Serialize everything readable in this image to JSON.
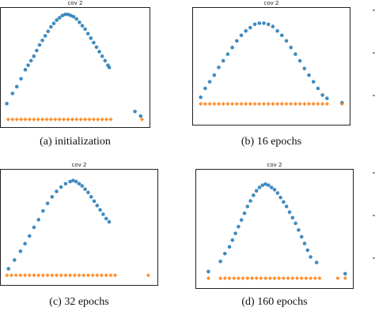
{
  "chart_data": [
    {
      "type": "scatter",
      "title": "cov 2",
      "caption": "(a) initialization",
      "xlim": [
        0,
        1
      ],
      "ylim": [
        0,
        1
      ],
      "series": [
        {
          "color": "#1f77b4",
          "marker": "circle",
          "points": [
            [
              0.02,
              0.18
            ],
            [
              0.06,
              0.27
            ],
            [
              0.09,
              0.33
            ],
            [
              0.12,
              0.4
            ],
            [
              0.15,
              0.48
            ],
            [
              0.17,
              0.52
            ],
            [
              0.19,
              0.56
            ],
            [
              0.21,
              0.6
            ],
            [
              0.23,
              0.65
            ],
            [
              0.25,
              0.7
            ],
            [
              0.27,
              0.74
            ],
            [
              0.29,
              0.78
            ],
            [
              0.31,
              0.82
            ],
            [
              0.33,
              0.86
            ],
            [
              0.35,
              0.89
            ],
            [
              0.37,
              0.92
            ],
            [
              0.39,
              0.94
            ],
            [
              0.41,
              0.96
            ],
            [
              0.43,
              0.97
            ],
            [
              0.45,
              0.97
            ],
            [
              0.47,
              0.96
            ],
            [
              0.49,
              0.95
            ],
            [
              0.51,
              0.93
            ],
            [
              0.53,
              0.9
            ],
            [
              0.55,
              0.87
            ],
            [
              0.57,
              0.84
            ],
            [
              0.59,
              0.8
            ],
            [
              0.61,
              0.76
            ],
            [
              0.63,
              0.72
            ],
            [
              0.65,
              0.68
            ],
            [
              0.67,
              0.64
            ],
            [
              0.69,
              0.6
            ],
            [
              0.71,
              0.56
            ],
            [
              0.73,
              0.52
            ],
            [
              0.74,
              0.5
            ],
            [
              0.92,
              0.11
            ],
            [
              0.96,
              0.07
            ]
          ]
        },
        {
          "color": "#ff7f0e",
          "marker": "diamond",
          "points": [
            [
              0.03,
              0.04
            ],
            [
              0.06,
              0.04
            ],
            [
              0.09,
              0.04
            ],
            [
              0.12,
              0.04
            ],
            [
              0.15,
              0.04
            ],
            [
              0.18,
              0.04
            ],
            [
              0.21,
              0.04
            ],
            [
              0.24,
              0.04
            ],
            [
              0.27,
              0.04
            ],
            [
              0.3,
              0.04
            ],
            [
              0.33,
              0.04
            ],
            [
              0.36,
              0.04
            ],
            [
              0.39,
              0.04
            ],
            [
              0.42,
              0.04
            ],
            [
              0.45,
              0.04
            ],
            [
              0.48,
              0.04
            ],
            [
              0.51,
              0.04
            ],
            [
              0.54,
              0.04
            ],
            [
              0.57,
              0.04
            ],
            [
              0.6,
              0.04
            ],
            [
              0.63,
              0.04
            ],
            [
              0.66,
              0.04
            ],
            [
              0.69,
              0.04
            ],
            [
              0.72,
              0.04
            ],
            [
              0.75,
              0.04
            ],
            [
              0.97,
              0.04
            ]
          ]
        }
      ]
    },
    {
      "type": "scatter",
      "title": "cov 2",
      "caption": "(b) 16 epochs",
      "xlim": [
        0,
        1
      ],
      "ylim": [
        0,
        1
      ],
      "series": [
        {
          "color": "#1f77b4",
          "marker": "circle",
          "points": [
            [
              0.03,
              0.22
            ],
            [
              0.06,
              0.3
            ],
            [
              0.09,
              0.36
            ],
            [
              0.12,
              0.42
            ],
            [
              0.15,
              0.49
            ],
            [
              0.18,
              0.55
            ],
            [
              0.21,
              0.61
            ],
            [
              0.24,
              0.67
            ],
            [
              0.27,
              0.73
            ],
            [
              0.3,
              0.78
            ],
            [
              0.33,
              0.82
            ],
            [
              0.36,
              0.85
            ],
            [
              0.39,
              0.88
            ],
            [
              0.42,
              0.89
            ],
            [
              0.45,
              0.89
            ],
            [
              0.48,
              0.88
            ],
            [
              0.51,
              0.86
            ],
            [
              0.54,
              0.82
            ],
            [
              0.57,
              0.78
            ],
            [
              0.6,
              0.73
            ],
            [
              0.63,
              0.67
            ],
            [
              0.66,
              0.61
            ],
            [
              0.69,
              0.55
            ],
            [
              0.72,
              0.48
            ],
            [
              0.75,
              0.42
            ],
            [
              0.78,
              0.36
            ],
            [
              0.81,
              0.3
            ],
            [
              0.84,
              0.24
            ],
            [
              0.87,
              0.21
            ],
            [
              0.97,
              0.17
            ]
          ]
        },
        {
          "color": "#ff7f0e",
          "marker": "diamond",
          "points": [
            [
              0.03,
              0.16
            ],
            [
              0.06,
              0.16
            ],
            [
              0.09,
              0.16
            ],
            [
              0.12,
              0.16
            ],
            [
              0.15,
              0.16
            ],
            [
              0.18,
              0.16
            ],
            [
              0.21,
              0.16
            ],
            [
              0.24,
              0.16
            ],
            [
              0.27,
              0.16
            ],
            [
              0.3,
              0.16
            ],
            [
              0.33,
              0.16
            ],
            [
              0.36,
              0.16
            ],
            [
              0.39,
              0.16
            ],
            [
              0.42,
              0.16
            ],
            [
              0.45,
              0.16
            ],
            [
              0.48,
              0.16
            ],
            [
              0.51,
              0.16
            ],
            [
              0.54,
              0.16
            ],
            [
              0.57,
              0.16
            ],
            [
              0.6,
              0.16
            ],
            [
              0.63,
              0.16
            ],
            [
              0.66,
              0.16
            ],
            [
              0.69,
              0.16
            ],
            [
              0.72,
              0.16
            ],
            [
              0.75,
              0.16
            ],
            [
              0.78,
              0.16
            ],
            [
              0.81,
              0.16
            ],
            [
              0.84,
              0.16
            ],
            [
              0.87,
              0.16
            ],
            [
              0.97,
              0.16
            ]
          ]
        }
      ]
    },
    {
      "type": "scatter",
      "title": "cov 2",
      "caption": "(c) 32 epochs",
      "xlim": [
        0,
        1
      ],
      "ylim": [
        0,
        1
      ],
      "series": [
        {
          "color": "#1f77b4",
          "marker": "circle",
          "points": [
            [
              0.03,
              0.12
            ],
            [
              0.07,
              0.2
            ],
            [
              0.11,
              0.28
            ],
            [
              0.14,
              0.35
            ],
            [
              0.17,
              0.42
            ],
            [
              0.2,
              0.5
            ],
            [
              0.23,
              0.57
            ],
            [
              0.26,
              0.65
            ],
            [
              0.29,
              0.72
            ],
            [
              0.32,
              0.78
            ],
            [
              0.35,
              0.83
            ],
            [
              0.38,
              0.87
            ],
            [
              0.41,
              0.9
            ],
            [
              0.44,
              0.92
            ],
            [
              0.46,
              0.93
            ],
            [
              0.48,
              0.92
            ],
            [
              0.5,
              0.9
            ],
            [
              0.52,
              0.88
            ],
            [
              0.54,
              0.85
            ],
            [
              0.56,
              0.82
            ],
            [
              0.58,
              0.78
            ],
            [
              0.6,
              0.74
            ],
            [
              0.62,
              0.7
            ],
            [
              0.64,
              0.66
            ],
            [
              0.66,
              0.62
            ],
            [
              0.68,
              0.58
            ],
            [
              0.7,
              0.55
            ]
          ]
        },
        {
          "color": "#ff7f0e",
          "marker": "diamond",
          "points": [
            [
              0.02,
              0.06
            ],
            [
              0.05,
              0.06
            ],
            [
              0.08,
              0.06
            ],
            [
              0.11,
              0.06
            ],
            [
              0.14,
              0.06
            ],
            [
              0.17,
              0.06
            ],
            [
              0.2,
              0.06
            ],
            [
              0.23,
              0.06
            ],
            [
              0.26,
              0.06
            ],
            [
              0.29,
              0.06
            ],
            [
              0.32,
              0.06
            ],
            [
              0.35,
              0.06
            ],
            [
              0.38,
              0.06
            ],
            [
              0.41,
              0.06
            ],
            [
              0.44,
              0.06
            ],
            [
              0.47,
              0.06
            ],
            [
              0.5,
              0.06
            ],
            [
              0.53,
              0.06
            ],
            [
              0.56,
              0.06
            ],
            [
              0.59,
              0.06
            ],
            [
              0.62,
              0.06
            ],
            [
              0.65,
              0.06
            ],
            [
              0.68,
              0.06
            ],
            [
              0.71,
              0.06
            ],
            [
              0.74,
              0.06
            ],
            [
              0.96,
              0.06
            ]
          ]
        }
      ]
    },
    {
      "type": "scatter",
      "title": "cov 2",
      "caption": "(d) 160 epochs",
      "xlim": [
        0,
        1
      ],
      "ylim": [
        0,
        1
      ],
      "series": [
        {
          "color": "#1f77b4",
          "marker": "circle",
          "points": [
            [
              0.06,
              0.12
            ],
            [
              0.14,
              0.21
            ],
            [
              0.17,
              0.28
            ],
            [
              0.2,
              0.34
            ],
            [
              0.22,
              0.4
            ],
            [
              0.24,
              0.46
            ],
            [
              0.26,
              0.52
            ],
            [
              0.28,
              0.58
            ],
            [
              0.3,
              0.64
            ],
            [
              0.32,
              0.7
            ],
            [
              0.34,
              0.75
            ],
            [
              0.36,
              0.8
            ],
            [
              0.38,
              0.84
            ],
            [
              0.4,
              0.87
            ],
            [
              0.42,
              0.89
            ],
            [
              0.44,
              0.9
            ],
            [
              0.46,
              0.89
            ],
            [
              0.48,
              0.87
            ],
            [
              0.5,
              0.85
            ],
            [
              0.52,
              0.82
            ],
            [
              0.54,
              0.78
            ],
            [
              0.56,
              0.74
            ],
            [
              0.58,
              0.7
            ],
            [
              0.6,
              0.65
            ],
            [
              0.62,
              0.6
            ],
            [
              0.64,
              0.55
            ],
            [
              0.66,
              0.49
            ],
            [
              0.68,
              0.43
            ],
            [
              0.7,
              0.37
            ],
            [
              0.72,
              0.31
            ],
            [
              0.74,
              0.25
            ],
            [
              0.78,
              0.2
            ],
            [
              0.97,
              0.1
            ]
          ]
        },
        {
          "color": "#ff7f0e",
          "marker": "diamond",
          "points": [
            [
              0.06,
              0.06
            ],
            [
              0.14,
              0.06
            ],
            [
              0.17,
              0.06
            ],
            [
              0.2,
              0.06
            ],
            [
              0.23,
              0.06
            ],
            [
              0.26,
              0.06
            ],
            [
              0.29,
              0.06
            ],
            [
              0.32,
              0.06
            ],
            [
              0.35,
              0.06
            ],
            [
              0.38,
              0.06
            ],
            [
              0.41,
              0.06
            ],
            [
              0.44,
              0.06
            ],
            [
              0.47,
              0.06
            ],
            [
              0.5,
              0.06
            ],
            [
              0.53,
              0.06
            ],
            [
              0.56,
              0.06
            ],
            [
              0.59,
              0.06
            ],
            [
              0.62,
              0.06
            ],
            [
              0.65,
              0.06
            ],
            [
              0.68,
              0.06
            ],
            [
              0.71,
              0.06
            ],
            [
              0.74,
              0.06
            ],
            [
              0.77,
              0.06
            ],
            [
              0.8,
              0.06
            ],
            [
              0.92,
              0.06
            ],
            [
              0.97,
              0.06
            ]
          ]
        }
      ]
    }
  ]
}
